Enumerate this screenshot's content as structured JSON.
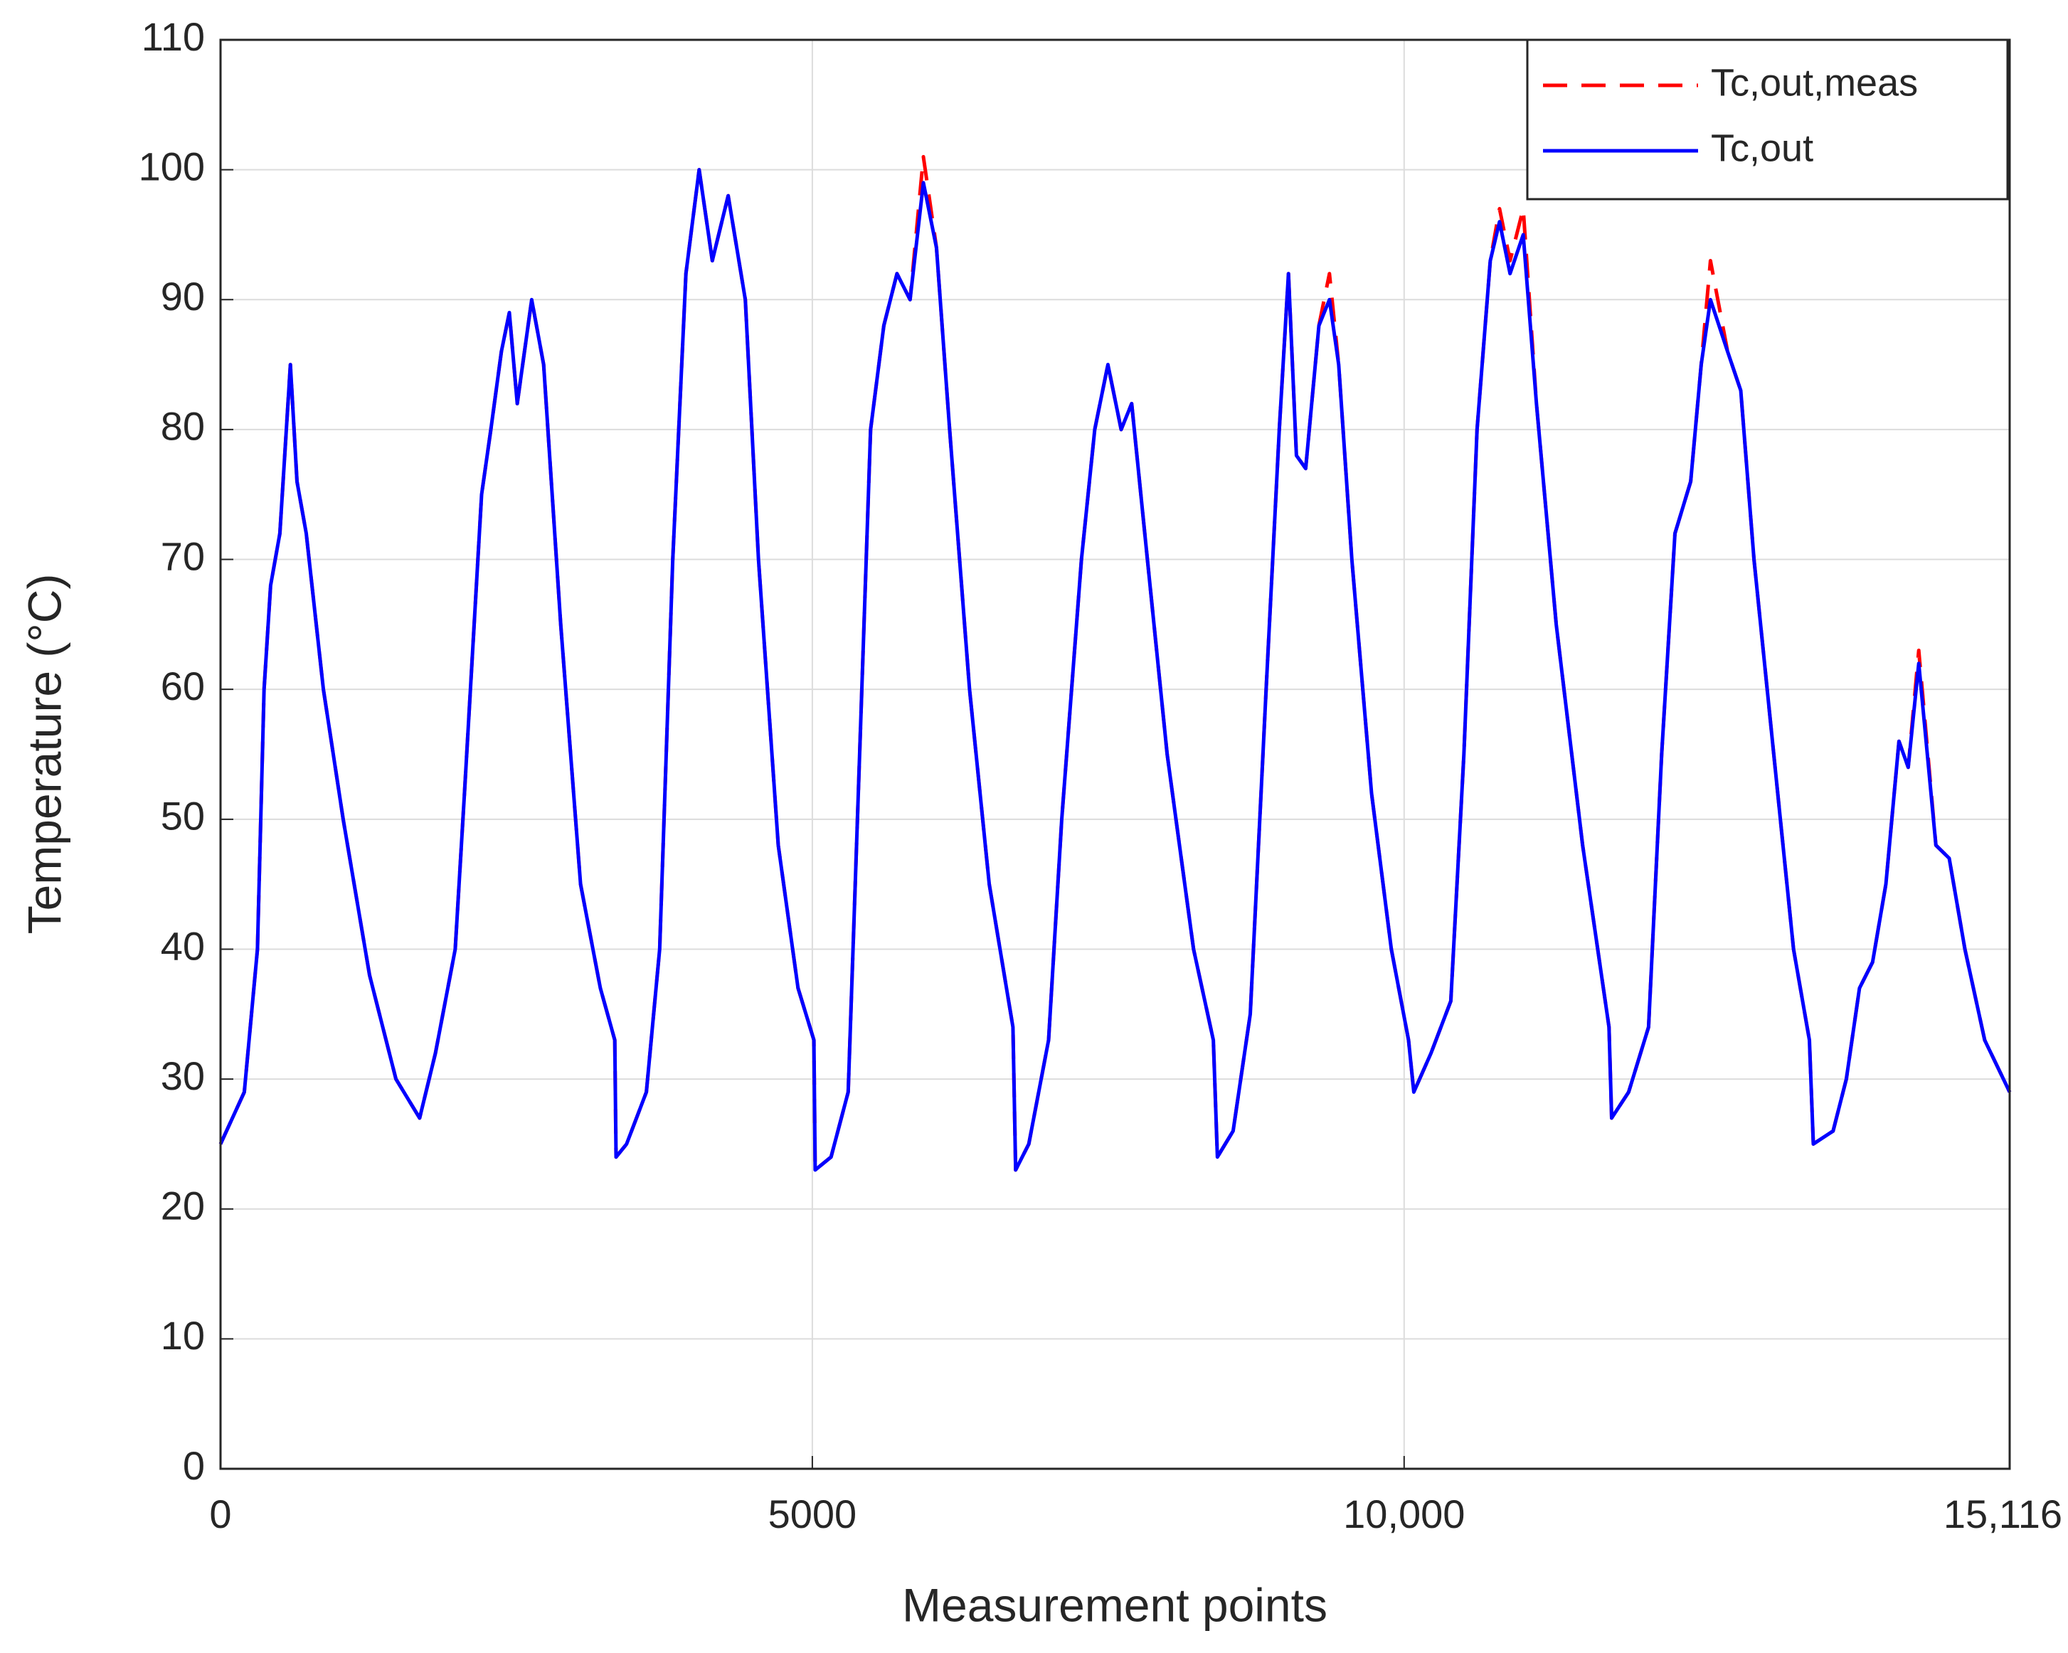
{
  "chart_data": {
    "type": "line",
    "xlabel": "Measurement points",
    "ylabel": "Temperature (°C)",
    "xlim": [
      0,
      15116
    ],
    "xticks": [
      0,
      5000,
      {
        "value": 10000,
        "label": "10,000"
      },
      {
        "value": 15116,
        "label": "15,116"
      }
    ],
    "ylim": [
      0,
      110
    ],
    "yticks": [
      0,
      10,
      20,
      30,
      40,
      50,
      60,
      70,
      80,
      90,
      100,
      110
    ],
    "grid": true,
    "legend": "upper right",
    "x": [
      0,
      201,
      312,
      368,
      423,
      501,
      590,
      646,
      724,
      869,
      1036,
      1259,
      1482,
      1682,
      1816,
      1983,
      2061,
      2206,
      2284,
      2373,
      2440,
      2507,
      2629,
      2730,
      2874,
      3042,
      3209,
      3331,
      3342,
      3431,
      3598,
      3710,
      3821,
      3932,
      4044,
      4155,
      4289,
      4434,
      4545,
      4712,
      4879,
      5013,
      5024,
      5158,
      5303,
      5381,
      5492,
      5604,
      5715,
      5826,
      5938,
      6049,
      6160,
      6328,
      6495,
      6695,
      6718,
      6829,
      6996,
      7107,
      7274,
      7386,
      7497,
      7609,
      7698,
      7831,
      7998,
      8221,
      8388,
      8422,
      8555,
      8700,
      8834,
      8945,
      9023,
      9090,
      9168,
      9280,
      9369,
      9447,
      9558,
      9725,
      9892,
      10037,
      10082,
      10227,
      10394,
      10505,
      10616,
      10728,
      10806,
      10895,
      11006,
      11118,
      11285,
      11508,
      11731,
      11753,
      11897,
      12065,
      12176,
      12288,
      12421,
      12510,
      12588,
      12733,
      12844,
      12956,
      13123,
      13290,
      13424,
      13457,
      13624,
      13736,
      13847,
      13958,
      14070,
      14181,
      14259,
      14348,
      14493,
      14605,
      14738,
      14905,
      15116
    ],
    "series": [
      {
        "name": "Tc,out,meas",
        "color": "#ff0000",
        "linestyle": "dashed",
        "values": [
          25,
          29,
          40,
          60,
          68,
          72,
          85,
          76,
          72,
          60,
          50,
          38,
          30,
          27,
          32,
          40,
          52,
          75,
          80,
          86,
          89,
          82,
          90,
          85,
          65,
          45,
          37,
          33,
          24,
          25,
          29,
          40,
          70,
          92,
          100,
          93,
          98,
          90,
          70,
          48,
          37,
          33,
          23,
          24,
          29,
          50,
          80,
          88,
          92,
          90,
          101,
          94,
          80,
          60,
          45,
          34,
          23,
          25,
          33,
          50,
          70,
          80,
          85,
          80,
          82,
          70,
          55,
          40,
          33,
          24,
          26,
          35,
          60,
          80,
          92,
          78,
          77,
          88,
          92,
          85,
          70,
          52,
          40,
          33,
          29,
          32,
          36,
          55,
          80,
          93,
          97,
          93,
          97,
          82,
          65,
          48,
          34,
          27,
          29,
          34,
          55,
          72,
          76,
          85,
          93,
          86,
          83,
          70,
          55,
          40,
          33,
          25,
          26,
          30,
          37,
          39,
          45,
          56,
          54,
          63,
          48,
          47,
          40,
          33,
          29
        ]
      },
      {
        "name": "Tc,out",
        "color": "#0000ff",
        "linestyle": "solid",
        "values": [
          25,
          29,
          40,
          60,
          68,
          72,
          85,
          76,
          72,
          60,
          50,
          38,
          30,
          27,
          32,
          40,
          52,
          75,
          80,
          86,
          89,
          82,
          90,
          85,
          65,
          45,
          37,
          33,
          24,
          25,
          29,
          40,
          70,
          92,
          100,
          93,
          98,
          90,
          70,
          48,
          37,
          33,
          23,
          24,
          29,
          50,
          80,
          88,
          92,
          90,
          99,
          94,
          80,
          60,
          45,
          34,
          23,
          25,
          33,
          50,
          70,
          80,
          85,
          80,
          82,
          70,
          55,
          40,
          33,
          24,
          26,
          35,
          60,
          80,
          92,
          78,
          77,
          88,
          90,
          85,
          70,
          52,
          40,
          33,
          29,
          32,
          36,
          55,
          80,
          93,
          96,
          92,
          95,
          82,
          65,
          48,
          34,
          27,
          29,
          34,
          55,
          72,
          76,
          85,
          90,
          86,
          83,
          70,
          55,
          40,
          33,
          25,
          26,
          30,
          37,
          39,
          45,
          56,
          54,
          62,
          48,
          47,
          40,
          33,
          29
        ]
      }
    ]
  }
}
